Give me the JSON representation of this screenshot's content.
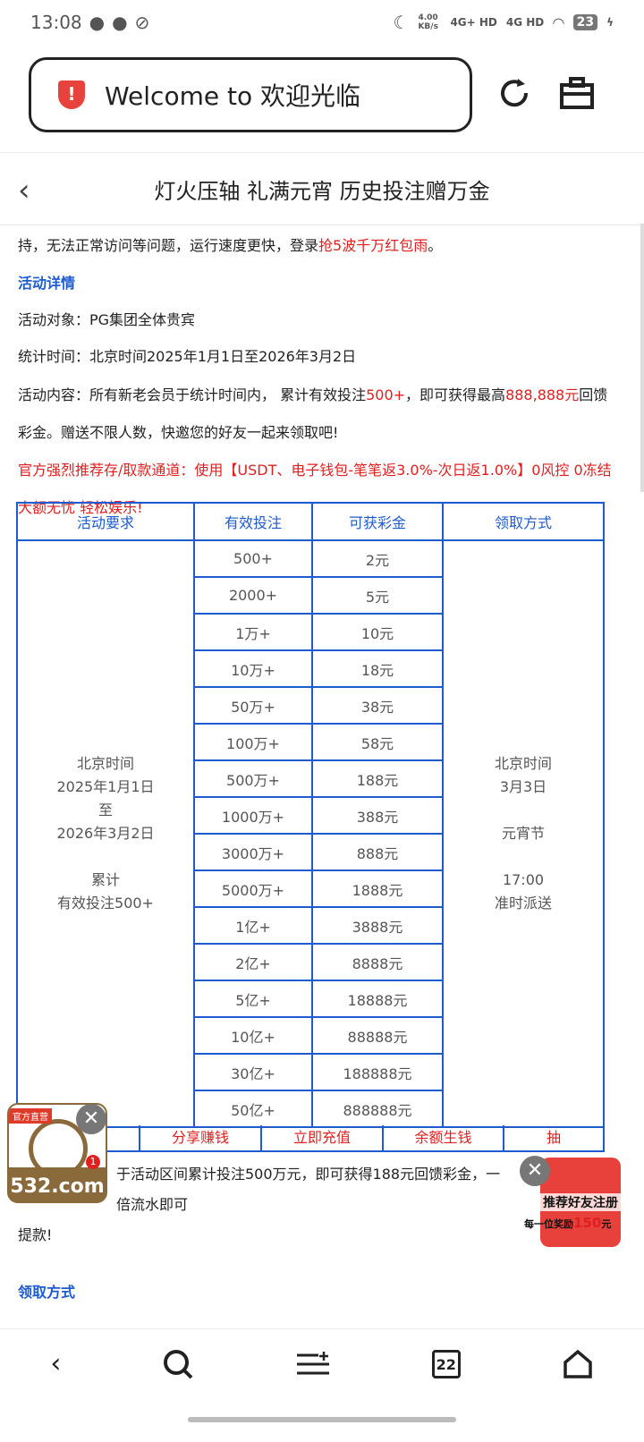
{
  "status": {
    "time": "13:08",
    "speed": "4.00 KB/s",
    "net1": "4G+ HD",
    "net2": "4G HD",
    "battery": "23"
  },
  "browser": {
    "url": "Welcome to 欢迎光临",
    "tabs_count": "22"
  },
  "header": {
    "title": "灯火压轴 礼满元宵 历史投注赠万金"
  },
  "content": {
    "line0a": "持，无法正常访问等问题，运行速度更快，登录",
    "line0b": "抢5波千万红包雨",
    "line0c": "。",
    "section1": "活动详情",
    "target": "活动对象：PG集团全体贵宾",
    "time": "统计时间：北京时间2025年1月1日至2026年3月2日",
    "desc_a": "活动内容：所有新老会员于统计时间内， 累计有效投注",
    "desc_b": "500+",
    "desc_c": "，即可获得最高",
    "desc_d": "888,888元",
    "desc_e": "回馈彩金。赠送不限人数，快邀您的好友一起来领取吧!",
    "promo": "官方强烈推荐存/取款通道：使用【USDT、电子钱包-笔笔返3.0%-次日返1.0%】0风控 0冻结 大额无忧 轻松娱乐!"
  },
  "table": {
    "headers": [
      "活动要求",
      "有效投注",
      "可获彩金",
      "领取方式"
    ],
    "requirement": [
      "北京时间",
      "2025年1月1日",
      "至",
      "2026年3月2日",
      "",
      "累计",
      "有效投注500+"
    ],
    "claim": [
      "北京时间",
      "3月3日",
      "",
      "元宵节",
      "",
      "17:00",
      "准时派送"
    ],
    "rows": [
      [
        "500+",
        "2元"
      ],
      [
        "2000+",
        "5元"
      ],
      [
        "1万+",
        "10元"
      ],
      [
        "10万+",
        "18元"
      ],
      [
        "50万+",
        "38元"
      ],
      [
        "100万+",
        "58元"
      ],
      [
        "500万+",
        "188元"
      ],
      [
        "1000万+",
        "388元"
      ],
      [
        "3000万+",
        "888元"
      ],
      [
        "5000万+",
        "1888元"
      ],
      [
        "1亿+",
        "3888元"
      ],
      [
        "2亿+",
        "8888元"
      ],
      [
        "5亿+",
        "18888元"
      ],
      [
        "10亿+",
        "88888元"
      ],
      [
        "30亿+",
        "188888元"
      ],
      [
        "50亿+",
        "888888元"
      ]
    ]
  },
  "links": [
    "",
    "分享赚钱",
    "立即充值",
    "余额生钱",
    "抽"
  ],
  "after": {
    "example": "于活动区间累计投注500万元，即可获得188元回馈彩金，一倍流水即可",
    "example2": "提款!",
    "section2": "领取方式"
  },
  "ads": {
    "left_tag": "官方直营",
    "left_domain": "532.com",
    "left_badge": "1",
    "right_title": "推荐好友注册",
    "right_sub": "每一位奖励",
    "right_amount": "150",
    "right_unit": "元"
  }
}
